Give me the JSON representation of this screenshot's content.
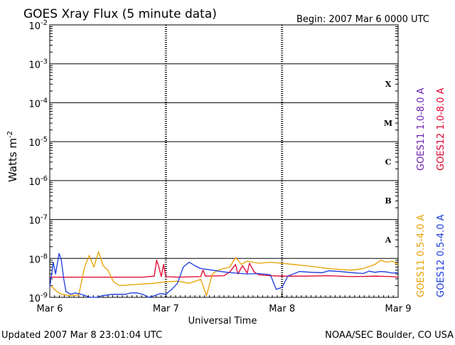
{
  "header": {
    "title": "GOES Xray Flux (5 minute data)",
    "begin": "Begin:  2007 Mar 6 0000 UTC"
  },
  "footer": {
    "updated": "Updated 2007 Mar  8 23:01:04 UTC",
    "source": "NOAA/SEC Boulder, CO USA"
  },
  "colors": {
    "goes11_long": "#6a1fb0",
    "goes12_long": "#e0002a",
    "goes11_short": "#e8a000",
    "goes12_short": "#1a3ae0"
  },
  "chart_data": {
    "type": "line",
    "title": "GOES Xray Flux (5 minute data)",
    "xlabel": "Universal Time",
    "ylabel": "Watts m",
    "ylabel_sup": "-2",
    "yscale": "log",
    "ylim": [
      1e-09,
      0.01
    ],
    "xlim": [
      "2007-03-06T00:00",
      "2007-03-09T00:00"
    ],
    "x_ticks": [
      {
        "t": "2007-03-06T00:00",
        "label": "Mar 6"
      },
      {
        "t": "2007-03-07T00:00",
        "label": "Mar 7"
      },
      {
        "t": "2007-03-08T00:00",
        "label": "Mar 8"
      },
      {
        "t": "2007-03-09T00:00",
        "label": "Mar 9"
      }
    ],
    "y_ticks": [
      {
        "v": 1e-09,
        "base": "10",
        "exp": "-9"
      },
      {
        "v": 1e-08,
        "base": "10",
        "exp": "-8"
      },
      {
        "v": 1e-07,
        "base": "10",
        "exp": "-7"
      },
      {
        "v": 1e-06,
        "base": "10",
        "exp": "-6"
      },
      {
        "v": 1e-05,
        "base": "10",
        "exp": "-5"
      },
      {
        "v": 0.0001,
        "base": "10",
        "exp": "-4"
      },
      {
        "v": 0.001,
        "base": "10",
        "exp": "-3"
      },
      {
        "v": 0.01,
        "base": "10",
        "exp": "-2"
      }
    ],
    "flare_classes": [
      {
        "label": "A",
        "low": 1e-08,
        "high": 1e-07
      },
      {
        "label": "B",
        "low": 1e-07,
        "high": 1e-06
      },
      {
        "label": "C",
        "low": 1e-06,
        "high": 1e-05
      },
      {
        "label": "M",
        "low": 1e-05,
        "high": 0.0001
      },
      {
        "label": "X",
        "low": 0.0001,
        "high": 0.001
      }
    ],
    "grid": "horizontal lines at each decade; dashed vertical lines at day boundaries",
    "legend_placement": "right, vertical",
    "series": [
      {
        "name": "GOES11 1.0-8.0 A",
        "color": "#6a1fb0",
        "points": []
      },
      {
        "name": "GOES12 1.0-8.0 A",
        "color": "#e0002a",
        "points": [
          [
            0.0,
            3.3e-09
          ],
          [
            0.8,
            3.3e-09
          ],
          [
            0.9,
            3.5e-09
          ],
          [
            0.92,
            9e-09
          ],
          [
            0.94,
            6e-09
          ],
          [
            0.96,
            3.4e-09
          ],
          [
            0.98,
            7e-09
          ],
          [
            1.0,
            3.4e-09
          ],
          [
            1.1,
            3.3e-09
          ],
          [
            1.3,
            3.4e-09
          ],
          [
            1.32,
            5e-09
          ],
          [
            1.34,
            3.5e-09
          ],
          [
            1.5,
            3.6e-09
          ],
          [
            1.55,
            4.5e-09
          ],
          [
            1.6,
            7e-09
          ],
          [
            1.62,
            4e-09
          ],
          [
            1.66,
            6.5e-09
          ],
          [
            1.7,
            4.2e-09
          ],
          [
            1.72,
            7.5e-09
          ],
          [
            1.76,
            4.5e-09
          ],
          [
            1.8,
            3.8e-09
          ],
          [
            1.9,
            3.6e-09
          ],
          [
            2.0,
            3.5e-09
          ],
          [
            2.2,
            3.5e-09
          ],
          [
            2.4,
            3.6e-09
          ],
          [
            2.6,
            3.4e-09
          ],
          [
            2.8,
            3.5e-09
          ],
          [
            2.95,
            3.4e-09
          ],
          [
            3.0,
            3.3e-09
          ]
        ]
      },
      {
        "name": "GOES11 0.5-4.0 A",
        "color": "#e8a000",
        "points": [
          [
            0.0,
            2.1e-09
          ],
          [
            0.05,
            1.5e-09
          ],
          [
            0.1,
            1.2e-09
          ],
          [
            0.18,
            1.1e-09
          ],
          [
            0.25,
            1.15e-09
          ],
          [
            0.3,
            6e-09
          ],
          [
            0.34,
            1.2e-08
          ],
          [
            0.38,
            6e-09
          ],
          [
            0.42,
            1.5e-08
          ],
          [
            0.46,
            6.5e-09
          ],
          [
            0.5,
            5e-09
          ],
          [
            0.55,
            2.5e-09
          ],
          [
            0.6,
            2e-09
          ],
          [
            0.7,
            2.1e-09
          ],
          [
            0.8,
            2.2e-09
          ],
          [
            0.9,
            2.3e-09
          ],
          [
            1.0,
            2.5e-09
          ],
          [
            1.1,
            2.6e-09
          ],
          [
            1.2,
            2.3e-09
          ],
          [
            1.3,
            2.9e-09
          ],
          [
            1.35,
            1.1e-09
          ],
          [
            1.4,
            4e-09
          ],
          [
            1.45,
            5e-09
          ],
          [
            1.55,
            6e-09
          ],
          [
            1.6,
            1.05e-08
          ],
          [
            1.65,
            7e-09
          ],
          [
            1.7,
            8.5e-09
          ],
          [
            1.8,
            7.5e-09
          ],
          [
            1.9,
            8e-09
          ],
          [
            2.0,
            7.5e-09
          ],
          [
            2.1,
            7e-09
          ],
          [
            2.2,
            6.5e-09
          ],
          [
            2.3,
            6e-09
          ],
          [
            2.4,
            5.5e-09
          ],
          [
            2.5,
            5.2e-09
          ],
          [
            2.6,
            5e-09
          ],
          [
            2.7,
            5.5e-09
          ],
          [
            2.8,
            7e-09
          ],
          [
            2.85,
            9e-09
          ],
          [
            2.9,
            8e-09
          ],
          [
            2.95,
            8.5e-09
          ],
          [
            3.0,
            7e-09
          ]
        ]
      },
      {
        "name": "GOES12 0.5-4.0 A",
        "color": "#1a3ae0",
        "points": [
          [
            0.0,
            1.8e-09
          ],
          [
            0.03,
            8e-09
          ],
          [
            0.05,
            4e-09
          ],
          [
            0.08,
            1.35e-08
          ],
          [
            0.1,
            9e-09
          ],
          [
            0.12,
            3e-09
          ],
          [
            0.14,
            1.4e-09
          ],
          [
            0.18,
            1.2e-09
          ],
          [
            0.22,
            1.3e-09
          ],
          [
            0.27,
            1.2e-09
          ],
          [
            0.35,
            1e-09
          ],
          [
            0.4,
            1e-09
          ],
          [
            0.45,
            1.1e-09
          ],
          [
            0.55,
            1.2e-09
          ],
          [
            0.65,
            1.2e-09
          ],
          [
            0.7,
            1.3e-09
          ],
          [
            0.75,
            1.3e-09
          ],
          [
            0.8,
            1.2e-09
          ],
          [
            0.85,
            1e-09
          ],
          [
            0.9,
            1.1e-09
          ],
          [
            0.95,
            1.25e-09
          ],
          [
            1.0,
            1.2e-09
          ],
          [
            1.05,
            1.6e-09
          ],
          [
            1.1,
            2.3e-09
          ],
          [
            1.15,
            6e-09
          ],
          [
            1.2,
            8e-09
          ],
          [
            1.25,
            6.5e-09
          ],
          [
            1.3,
            5.5e-09
          ],
          [
            1.4,
            5e-09
          ],
          [
            1.5,
            4.5e-09
          ],
          [
            1.6,
            4.2e-09
          ],
          [
            1.7,
            4e-09
          ],
          [
            1.8,
            4.1e-09
          ],
          [
            1.9,
            3.8e-09
          ],
          [
            1.95,
            1.6e-09
          ],
          [
            2.0,
            1.8e-09
          ],
          [
            2.05,
            3.5e-09
          ],
          [
            2.15,
            4.6e-09
          ],
          [
            2.25,
            4.4e-09
          ],
          [
            2.35,
            4.3e-09
          ],
          [
            2.4,
            4.8e-09
          ],
          [
            2.5,
            4.6e-09
          ],
          [
            2.6,
            4.3e-09
          ],
          [
            2.7,
            4.1e-09
          ],
          [
            2.75,
            4.7e-09
          ],
          [
            2.8,
            4.4e-09
          ],
          [
            2.85,
            4.6e-09
          ],
          [
            2.9,
            4.5e-09
          ],
          [
            2.95,
            4.2e-09
          ],
          [
            3.0,
            4.3e-09
          ]
        ]
      }
    ]
  }
}
